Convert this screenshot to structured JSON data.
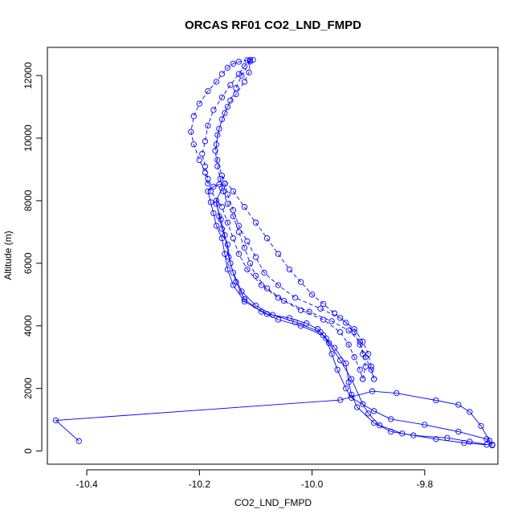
{
  "chart_data": {
    "type": "line",
    "title": "ORCAS RF01 CO2_LND_FMPD",
    "xlabel": "CO2_LND_FMPD",
    "ylabel": "Altitude (m)",
    "xlim": [
      -10.47,
      -9.67
    ],
    "ylim": [
      -420,
      12900
    ],
    "xticks": [
      -10.4,
      -10.2,
      -10.0,
      -9.8
    ],
    "xtick_labels": [
      "-10.4",
      "-10.2",
      "-10.0",
      "-9.8"
    ],
    "yticks": [
      0,
      2000,
      4000,
      6000,
      8000,
      10000,
      12000
    ],
    "ytick_labels": [
      "0",
      "2000",
      "4000",
      "6000",
      "8000",
      "10000",
      "12000"
    ],
    "grid": false,
    "marker": "open-circle",
    "series_color": "#0000ff",
    "series": [
      {
        "style": "solid",
        "points": [
          [
            -10.414,
            320
          ],
          [
            -10.455,
            980
          ],
          [
            -9.95,
            1630
          ],
          [
            -9.893,
            1910
          ],
          [
            -9.85,
            1850
          ],
          [
            -9.78,
            1620
          ],
          [
            -9.74,
            1480
          ],
          [
            -9.72,
            1250
          ],
          [
            -9.7,
            800
          ],
          [
            -9.685,
            330
          ],
          [
            -9.68,
            200
          ],
          [
            -9.69,
            380
          ],
          [
            -9.74,
            620
          ],
          [
            -9.8,
            840
          ],
          [
            -9.86,
            1020
          ],
          [
            -9.89,
            1280
          ],
          [
            -9.93,
            1700
          ],
          [
            -9.94,
            2000
          ],
          [
            -9.955,
            2600
          ],
          [
            -9.965,
            3100
          ],
          [
            -9.975,
            3600
          ],
          [
            -9.99,
            3900
          ],
          [
            -10.01,
            4080
          ],
          [
            -10.04,
            4250
          ],
          [
            -10.08,
            4380
          ],
          [
            -10.12,
            4780
          ],
          [
            -10.14,
            5300
          ],
          [
            -10.15,
            5800
          ],
          [
            -10.155,
            6300
          ],
          [
            -10.16,
            6800
          ],
          [
            -10.17,
            7200
          ],
          [
            -10.175,
            7600
          ],
          [
            -10.18,
            7950
          ],
          [
            -10.185,
            8300
          ],
          [
            -10.175,
            8450
          ],
          [
            -10.165,
            8520
          ],
          [
            -10.155,
            8540
          ]
        ]
      },
      {
        "style": "solid",
        "points": [
          [
            -9.68,
            180
          ],
          [
            -9.72,
            300
          ],
          [
            -9.76,
            420
          ],
          [
            -9.82,
            500
          ],
          [
            -9.86,
            620
          ],
          [
            -9.89,
            900
          ],
          [
            -9.92,
            1400
          ],
          [
            -9.93,
            1800
          ],
          [
            -9.935,
            2200
          ],
          [
            -9.94,
            2800
          ],
          [
            -9.96,
            3300
          ],
          [
            -9.98,
            3700
          ],
          [
            -10.02,
            4000
          ],
          [
            -10.06,
            4200
          ],
          [
            -10.09,
            4450
          ],
          [
            -10.12,
            4850
          ],
          [
            -10.135,
            5400
          ],
          [
            -10.145,
            6000
          ],
          [
            -10.15,
            6600
          ],
          [
            -10.16,
            7100
          ],
          [
            -10.165,
            7500
          ],
          [
            -10.17,
            8000
          ],
          [
            -10.16,
            8400
          ]
        ]
      },
      {
        "style": "solid",
        "points": [
          [
            -9.69,
            200
          ],
          [
            -9.73,
            260
          ],
          [
            -9.78,
            380
          ],
          [
            -9.84,
            560
          ],
          [
            -9.88,
            820
          ],
          [
            -9.9,
            1200
          ],
          [
            -9.91,
            1500
          ],
          [
            -9.93,
            2300
          ],
          [
            -9.95,
            2900
          ],
          [
            -9.97,
            3450
          ],
          [
            -9.985,
            3800
          ],
          [
            -10.03,
            4120
          ],
          [
            -10.07,
            4350
          ],
          [
            -10.1,
            4650
          ],
          [
            -10.125,
            5100
          ],
          [
            -10.14,
            5700
          ],
          [
            -10.148,
            6200
          ],
          [
            -10.155,
            6900
          ],
          [
            -10.162,
            7400
          ],
          [
            -10.17,
            7900
          ]
        ]
      },
      {
        "style": "dashed",
        "points": [
          [
            -10.185,
            8550
          ],
          [
            -10.19,
            8900
          ],
          [
            -10.2,
            9300
          ],
          [
            -10.21,
            9800
          ],
          [
            -10.215,
            10200
          ],
          [
            -10.21,
            10700
          ],
          [
            -10.2,
            11100
          ],
          [
            -10.185,
            11500
          ],
          [
            -10.17,
            11800
          ],
          [
            -10.16,
            12050
          ],
          [
            -10.15,
            12250
          ],
          [
            -10.14,
            12380
          ],
          [
            -10.13,
            12440
          ],
          [
            -10.115,
            12490
          ],
          [
            -10.105,
            12500
          ]
        ]
      },
      {
        "style": "dashed",
        "points": [
          [
            -10.11,
            12500
          ],
          [
            -10.12,
            12300
          ],
          [
            -10.13,
            12050
          ],
          [
            -10.145,
            11700
          ],
          [
            -10.16,
            11300
          ],
          [
            -10.175,
            10900
          ],
          [
            -10.185,
            10400
          ],
          [
            -10.19,
            9900
          ],
          [
            -10.195,
            9500
          ],
          [
            -10.19,
            9100
          ],
          [
            -10.185,
            8700
          ],
          [
            -10.18,
            8300
          ],
          [
            -10.16,
            7800
          ],
          [
            -10.15,
            7300
          ],
          [
            -10.14,
            6800
          ],
          [
            -10.13,
            6300
          ],
          [
            -10.115,
            5800
          ],
          [
            -10.09,
            5300
          ],
          [
            -10.06,
            4900
          ],
          [
            -10.02,
            4500
          ],
          [
            -9.98,
            4200
          ],
          [
            -9.95,
            3800
          ],
          [
            -9.935,
            3400
          ],
          [
            -9.925,
            3000
          ],
          [
            -9.915,
            2600
          ],
          [
            -9.91,
            2300
          ]
        ]
      },
      {
        "style": "dashed",
        "points": [
          [
            -9.91,
            2300
          ],
          [
            -9.905,
            2700
          ],
          [
            -9.91,
            3100
          ],
          [
            -9.915,
            3500
          ],
          [
            -9.935,
            3850
          ],
          [
            -9.965,
            4150
          ],
          [
            -10.005,
            4450
          ],
          [
            -10.05,
            4800
          ],
          [
            -10.08,
            5200
          ],
          [
            -10.1,
            5600
          ],
          [
            -10.11,
            6000
          ],
          [
            -10.12,
            6500
          ],
          [
            -10.13,
            7000
          ],
          [
            -10.14,
            7500
          ],
          [
            -10.15,
            7900
          ],
          [
            -10.158,
            8300
          ],
          [
            -10.163,
            8700
          ],
          [
            -10.168,
            9100
          ],
          [
            -10.172,
            9600
          ],
          [
            -10.168,
            10100
          ],
          [
            -10.16,
            10600
          ],
          [
            -10.15,
            11000
          ],
          [
            -10.135,
            11400
          ],
          [
            -10.12,
            11800
          ],
          [
            -10.112,
            12100
          ],
          [
            -10.11,
            12450
          ]
        ]
      },
      {
        "style": "dashed",
        "points": [
          [
            -10.11,
            12450
          ],
          [
            -10.125,
            12000
          ],
          [
            -10.135,
            11600
          ],
          [
            -10.145,
            11200
          ],
          [
            -10.155,
            10800
          ],
          [
            -10.165,
            10300
          ],
          [
            -10.17,
            9800
          ],
          [
            -10.168,
            9300
          ],
          [
            -10.16,
            8800
          ],
          [
            -10.14,
            8300
          ],
          [
            -10.12,
            7800
          ],
          [
            -10.1,
            7300
          ],
          [
            -10.08,
            6800
          ],
          [
            -10.06,
            6300
          ],
          [
            -10.04,
            5800
          ],
          [
            -10.02,
            5400
          ],
          [
            -10.0,
            5000
          ],
          [
            -9.98,
            4700
          ],
          [
            -9.96,
            4400
          ],
          [
            -9.94,
            4100
          ],
          [
            -9.925,
            3800
          ],
          [
            -9.915,
            3400
          ],
          [
            -9.905,
            3000
          ],
          [
            -9.895,
            2600
          ],
          [
            -9.89,
            2300
          ]
        ]
      },
      {
        "style": "dashed",
        "points": [
          [
            -9.89,
            2300
          ],
          [
            -9.895,
            2700
          ],
          [
            -9.9,
            3100
          ],
          [
            -9.91,
            3500
          ],
          [
            -9.925,
            3900
          ],
          [
            -9.95,
            4250
          ],
          [
            -9.985,
            4550
          ],
          [
            -10.03,
            4900
          ],
          [
            -10.06,
            5300
          ],
          [
            -10.085,
            5700
          ],
          [
            -10.1,
            6200
          ],
          [
            -10.115,
            6700
          ],
          [
            -10.13,
            7200
          ],
          [
            -10.14,
            7700
          ],
          [
            -10.15,
            8200
          ],
          [
            -10.155,
            8550
          ]
        ]
      }
    ]
  }
}
